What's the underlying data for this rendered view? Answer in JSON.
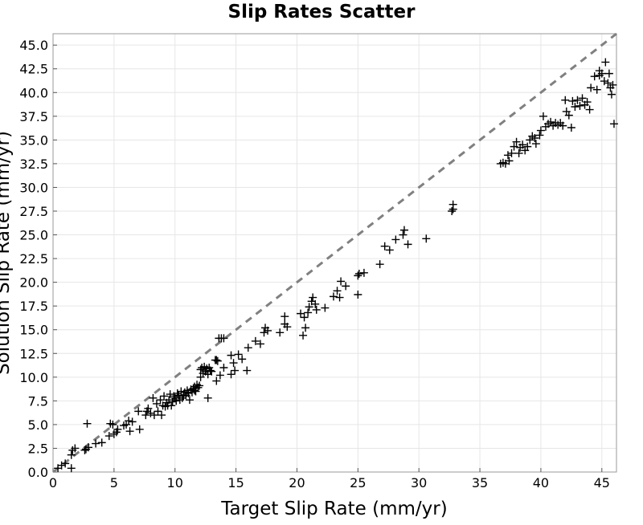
{
  "chart_data": {
    "type": "scatter",
    "title": "Slip Rates Scatter",
    "xlabel": "Target Slip Rate (mm/yr)",
    "ylabel": "Solution Slip Rate (mm/yr)",
    "xlim": [
      0,
      46.2
    ],
    "ylim": [
      0,
      46.2
    ],
    "xticks": [
      "0",
      "5",
      "10",
      "15",
      "20",
      "25",
      "30",
      "35",
      "40",
      "45"
    ],
    "yticks": [
      "0.0",
      "2.5",
      "5.0",
      "7.5",
      "10.0",
      "12.5",
      "15.0",
      "17.5",
      "20.0",
      "22.5",
      "25.0",
      "27.5",
      "30.0",
      "32.5",
      "35.0",
      "37.5",
      "40.0",
      "42.5",
      "45.0"
    ],
    "grid": true,
    "marker": "plus",
    "marker_color": "#000000",
    "reference_line": {
      "style": "dashed",
      "color": "#808080",
      "from": [
        0,
        0
      ],
      "to": [
        46.2,
        46.2
      ]
    },
    "points": [
      [
        0.4,
        0.4
      ],
      [
        0.7,
        0.7
      ],
      [
        1.0,
        0.9
      ],
      [
        1.5,
        1.8
      ],
      [
        1.6,
        2.3
      ],
      [
        1.8,
        2.5
      ],
      [
        1.5,
        0.4
      ],
      [
        2.6,
        2.3
      ],
      [
        2.7,
        2.4
      ],
      [
        2.9,
        2.6
      ],
      [
        2.8,
        5.1
      ],
      [
        3.5,
        3.0
      ],
      [
        4.0,
        3.1
      ],
      [
        4.6,
        3.8
      ],
      [
        4.7,
        5.1
      ],
      [
        4.9,
        5.0
      ],
      [
        5.0,
        4.0
      ],
      [
        5.2,
        4.2
      ],
      [
        5.3,
        4.5
      ],
      [
        5.8,
        4.9
      ],
      [
        6.0,
        5.0
      ],
      [
        6.2,
        5.4
      ],
      [
        6.3,
        4.3
      ],
      [
        6.5,
        5.3
      ],
      [
        7.0,
        6.4
      ],
      [
        7.1,
        4.5
      ],
      [
        7.6,
        6.0
      ],
      [
        7.7,
        6.4
      ],
      [
        7.8,
        6.7
      ],
      [
        8.0,
        6.2
      ],
      [
        8.2,
        7.8
      ],
      [
        8.3,
        6.0
      ],
      [
        8.5,
        7.2
      ],
      [
        8.6,
        6.4
      ],
      [
        8.8,
        7.6
      ],
      [
        8.9,
        6.0
      ],
      [
        9.0,
        7.0
      ],
      [
        9.1,
        8.0
      ],
      [
        9.2,
        6.9
      ],
      [
        9.3,
        7.3
      ],
      [
        9.4,
        7.0
      ],
      [
        9.5,
        7.6
      ],
      [
        9.6,
        8.2
      ],
      [
        9.7,
        7.0
      ],
      [
        9.8,
        7.4
      ],
      [
        9.9,
        8.0
      ],
      [
        10.0,
        7.8
      ],
      [
        10.1,
        7.5
      ],
      [
        10.2,
        8.3
      ],
      [
        10.3,
        8.1
      ],
      [
        10.4,
        7.6
      ],
      [
        10.5,
        8.5
      ],
      [
        10.6,
        7.8
      ],
      [
        10.7,
        8.0
      ],
      [
        10.8,
        8.4
      ],
      [
        10.9,
        8.1
      ],
      [
        11.0,
        8.6
      ],
      [
        11.1,
        8.3
      ],
      [
        11.2,
        7.6
      ],
      [
        11.3,
        8.7
      ],
      [
        11.4,
        8.4
      ],
      [
        11.5,
        8.8
      ],
      [
        11.6,
        9.0
      ],
      [
        11.7,
        8.5
      ],
      [
        11.8,
        9.2
      ],
      [
        11.9,
        8.9
      ],
      [
        12.0,
        9.1
      ],
      [
        11.6,
        8.6
      ],
      [
        12.1,
        10.8
      ],
      [
        12.2,
        11.0
      ],
      [
        12.3,
        10.4
      ],
      [
        12.4,
        11.1
      ],
      [
        12.5,
        10.6
      ],
      [
        12.6,
        10.9
      ],
      [
        12.7,
        10.3
      ],
      [
        12.8,
        11.0
      ],
      [
        12.9,
        10.7
      ],
      [
        13.0,
        10.6
      ],
      [
        12.7,
        7.8
      ],
      [
        12.1,
        10.0
      ],
      [
        13.4,
        11.8
      ],
      [
        13.5,
        11.7
      ],
      [
        13.3,
        11.8
      ],
      [
        13.6,
        14.1
      ],
      [
        13.8,
        14.1
      ],
      [
        14.0,
        14.1
      ],
      [
        13.4,
        9.6
      ],
      [
        13.7,
        10.2
      ],
      [
        14.0,
        11.0
      ],
      [
        14.6,
        12.3
      ],
      [
        14.6,
        10.3
      ],
      [
        14.8,
        11.5
      ],
      [
        14.9,
        10.7
      ],
      [
        15.2,
        12.4
      ],
      [
        15.5,
        11.9
      ],
      [
        15.9,
        10.7
      ],
      [
        16.0,
        13.1
      ],
      [
        16.6,
        13.8
      ],
      [
        17.0,
        13.5
      ],
      [
        17.3,
        14.7
      ],
      [
        17.4,
        15.2
      ],
      [
        17.6,
        14.9
      ],
      [
        18.6,
        14.7
      ],
      [
        19.0,
        16.4
      ],
      [
        19.0,
        15.6
      ],
      [
        19.2,
        15.3
      ],
      [
        20.3,
        16.7
      ],
      [
        20.5,
        14.4
      ],
      [
        20.6,
        16.3
      ],
      [
        20.7,
        15.2
      ],
      [
        20.9,
        16.8
      ],
      [
        21.0,
        17.4
      ],
      [
        21.2,
        18.0
      ],
      [
        21.3,
        18.4
      ],
      [
        21.5,
        17.7
      ],
      [
        21.6,
        17.1
      ],
      [
        22.3,
        17.3
      ],
      [
        23.0,
        18.5
      ],
      [
        23.3,
        19.1
      ],
      [
        23.6,
        20.1
      ],
      [
        23.5,
        18.4
      ],
      [
        24.0,
        19.6
      ],
      [
        25.0,
        20.7
      ],
      [
        25.0,
        18.7
      ],
      [
        25.1,
        20.9
      ],
      [
        25.5,
        21.0
      ],
      [
        26.8,
        21.9
      ],
      [
        27.2,
        23.8
      ],
      [
        27.6,
        23.4
      ],
      [
        28.1,
        24.5
      ],
      [
        28.7,
        25.0
      ],
      [
        28.8,
        25.5
      ],
      [
        29.1,
        24.0
      ],
      [
        30.6,
        24.6
      ],
      [
        32.7,
        27.5
      ],
      [
        32.8,
        28.2
      ],
      [
        32.8,
        27.7
      ],
      [
        36.7,
        32.5
      ],
      [
        36.9,
        32.6
      ],
      [
        37.1,
        32.5
      ],
      [
        37.3,
        33.4
      ],
      [
        37.4,
        32.8
      ],
      [
        37.6,
        33.6
      ],
      [
        37.8,
        34.3
      ],
      [
        38.0,
        34.8
      ],
      [
        38.2,
        33.6
      ],
      [
        38.3,
        34.2
      ],
      [
        38.5,
        34.5
      ],
      [
        38.7,
        33.9
      ],
      [
        38.9,
        34.3
      ],
      [
        39.1,
        35.0
      ],
      [
        39.3,
        35.4
      ],
      [
        39.5,
        35.2
      ],
      [
        39.6,
        34.6
      ],
      [
        39.9,
        35.5
      ],
      [
        40.2,
        37.5
      ],
      [
        40.0,
        36.0
      ],
      [
        40.4,
        36.4
      ],
      [
        40.6,
        36.7
      ],
      [
        40.8,
        36.9
      ],
      [
        41.0,
        36.5
      ],
      [
        41.2,
        36.8
      ],
      [
        41.4,
        36.6
      ],
      [
        41.6,
        36.8
      ],
      [
        41.8,
        36.5
      ],
      [
        42.0,
        39.2
      ],
      [
        42.1,
        38.0
      ],
      [
        42.3,
        37.6
      ],
      [
        42.5,
        36.3
      ],
      [
        42.6,
        39.1
      ],
      [
        42.8,
        38.5
      ],
      [
        43.0,
        39.2
      ],
      [
        43.2,
        38.6
      ],
      [
        43.4,
        39.4
      ],
      [
        43.6,
        38.7
      ],
      [
        43.8,
        39.0
      ],
      [
        44.0,
        38.2
      ],
      [
        44.1,
        40.5
      ],
      [
        44.4,
        41.7
      ],
      [
        44.6,
        40.3
      ],
      [
        44.8,
        41.8
      ],
      [
        45.0,
        42.0
      ],
      [
        44.8,
        42.3
      ],
      [
        45.2,
        41.2
      ],
      [
        45.3,
        43.2
      ],
      [
        45.5,
        41.0
      ],
      [
        45.6,
        42.0
      ],
      [
        45.7,
        40.5
      ],
      [
        45.8,
        39.8
      ],
      [
        46.0,
        36.7
      ],
      [
        45.9,
        40.8
      ]
    ]
  }
}
